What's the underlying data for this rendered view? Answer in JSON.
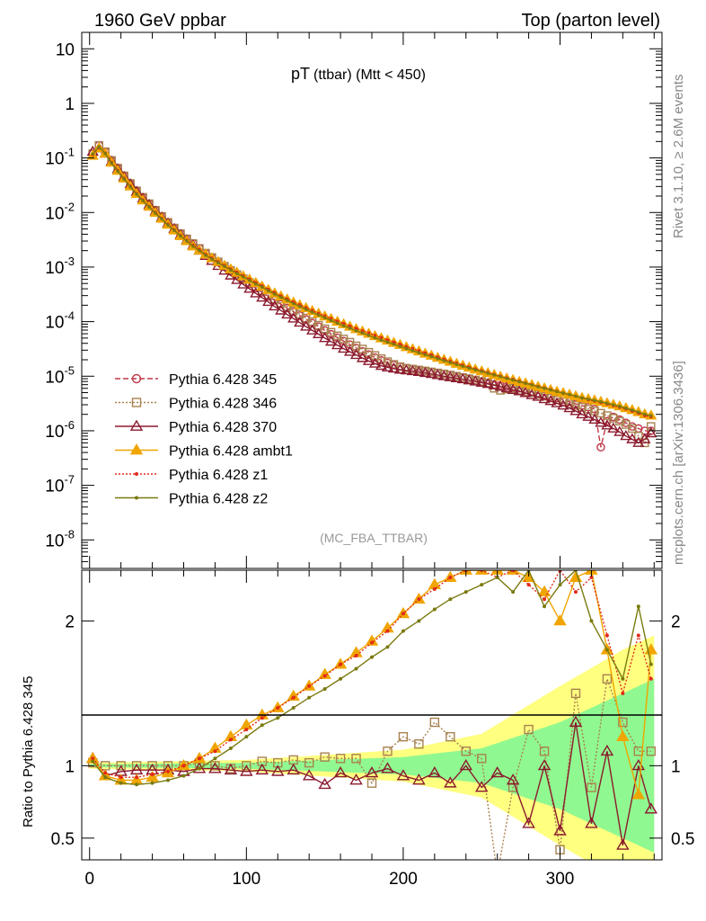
{
  "header": {
    "left": "1960 GeV ppbar",
    "right": "Top (parton level)"
  },
  "title": {
    "main": "pT",
    "sub": "(ttbar) (Mtt < 450)"
  },
  "side_labels": {
    "rivet": "Rivet 3.1.10, ≥ 2.6M events",
    "mcplots": "mcplots.cern.ch [arXiv:1306.3436]"
  },
  "analysis_tag": "(MC_FBA_TTBAR)",
  "ratio_ylabel": "Ratio to Pythia 6.428 345",
  "colors": {
    "345": "#c0394b",
    "346": "#a8824f",
    "370": "#8b1a2e",
    "ambt1": "#f0a500",
    "z1": "#e02a1a",
    "z2": "#7a7a10",
    "band_green": "#90f890",
    "band_yellow": "#ffff80"
  },
  "chart_data": [
    {
      "type": "line",
      "panel": "main",
      "yscale": "log",
      "ylim": [
        3e-09,
        20
      ],
      "xlim": [
        -5,
        365
      ],
      "yticks": [
        "10",
        "1",
        "10^-1",
        "10^-2",
        "10^-3",
        "10^-4",
        "10^-5",
        "10^-6",
        "10^-7",
        "10^-8"
      ],
      "legend_position": "lower-left",
      "x": [
        2,
        6,
        10,
        14,
        18,
        22,
        26,
        30,
        34,
        38,
        42,
        46,
        50,
        54,
        58,
        62,
        66,
        70,
        74,
        78,
        82,
        86,
        90,
        94,
        98,
        102,
        106,
        110,
        114,
        118,
        122,
        126,
        130,
        134,
        138,
        142,
        146,
        150,
        154,
        158,
        162,
        166,
        170,
        174,
        178,
        182,
        186,
        190,
        194,
        198,
        202,
        206,
        210,
        214,
        218,
        222,
        226,
        230,
        234,
        238,
        242,
        246,
        250,
        254,
        258,
        262,
        266,
        270,
        274,
        278,
        282,
        286,
        290,
        294,
        298,
        302,
        306,
        310,
        314,
        318,
        322,
        326,
        330,
        334,
        338,
        342,
        346,
        350,
        354,
        358
      ],
      "series": [
        {
          "name": "Pythia 6.428 345",
          "values": [
            0.12,
            0.17,
            0.13,
            0.09,
            0.065,
            0.047,
            0.034,
            0.025,
            0.019,
            0.0145,
            0.011,
            0.0085,
            0.0066,
            0.0052,
            0.0041,
            0.0033,
            0.0027,
            0.0022,
            0.0018,
            0.00148,
            0.00122,
            0.00101,
            0.00084,
            0.0007,
            0.00058,
            0.00049,
            0.00041,
            0.000345,
            0.00029,
            0.000245,
            0.000208,
            0.000177,
            0.000151,
            0.000129,
            0.00011,
            9.4e-05,
            8.1e-05,
            6.9e-05,
            5.9e-05,
            5.1e-05,
            4.4e-05,
            3.8e-05,
            3.3e-05,
            2.85e-05,
            2.5e-05,
            2.2e-05,
            1.95e-05,
            1.75e-05,
            1.6e-05,
            1.5e-05,
            1.4e-05,
            1.35e-05,
            1.3e-05,
            1.25e-05,
            1.2e-05,
            1.15e-05,
            1.1e-05,
            1.05e-05,
            1e-05,
            9.5e-06,
            9e-06,
            8.5e-06,
            8e-06,
            7.5e-06,
            7e-06,
            6.8e-06,
            6.5e-06,
            6.2e-06,
            6e-06,
            5.6e-06,
            5.2e-06,
            4.9e-06,
            4.6e-06,
            4.3e-06,
            4e-06,
            3.7e-06,
            3.4e-06,
            3.1e-06,
            2.9e-06,
            2.7e-06,
            2.5e-06,
            5e-07,
            1.5e-06,
            1.8e-06,
            1.6e-06,
            1.4e-06,
            1.2e-06,
            1.1e-06,
            1e-06,
            1e-06
          ]
        },
        {
          "name": "Pythia 6.428 346",
          "values": [
            0.12,
            0.17,
            0.13,
            0.09,
            0.065,
            0.047,
            0.034,
            0.025,
            0.019,
            0.0145,
            0.011,
            0.0085,
            0.0066,
            0.0052,
            0.0041,
            0.0033,
            0.0027,
            0.0022,
            0.0018,
            0.0015,
            0.00125,
            0.00104,
            0.00087,
            0.00073,
            0.00061,
            0.00052,
            0.00044,
            0.00037,
            0.00031,
            0.00026,
            0.00022,
            0.00019,
            0.00016,
            0.000137,
            0.000117,
            0.0001,
            8.6e-05,
            7.4e-05,
            6.4e-05,
            5.5e-05,
            4.8e-05,
            4.2e-05,
            3.6e-05,
            3.15e-05,
            2.75e-05,
            2.4e-05,
            2.1e-05,
            1.85e-05,
            1.65e-05,
            1.5e-05,
            1.4e-05,
            1.35e-05,
            1.3e-05,
            1.25e-05,
            1.2e-05,
            1.15e-05,
            1.1e-05,
            1.05e-05,
            1e-05,
            9.5e-06,
            9e-06,
            8.5e-06,
            8e-06,
            7.5e-06,
            6e-06,
            5.5e-06,
            5.8e-06,
            6e-06,
            5.5e-06,
            5.2e-06,
            5e-06,
            4.6e-06,
            4.3e-06,
            4e-06,
            3.7e-06,
            3.4e-06,
            3.1e-06,
            2.9e-06,
            2.7e-06,
            2.5e-06,
            2.3e-06,
            2.1e-06,
            1.9e-06,
            1.7e-06,
            1.5e-06,
            1.3e-06,
            1.1e-06,
            8e-07,
            6e-07,
            1.2e-06
          ]
        },
        {
          "name": "Pythia 6.428 370",
          "values": [
            0.13,
            0.15,
            0.12,
            0.086,
            0.062,
            0.045,
            0.033,
            0.024,
            0.018,
            0.0138,
            0.0105,
            0.0081,
            0.0063,
            0.005,
            0.0039,
            0.0031,
            0.0025,
            0.002,
            0.0016,
            0.0013,
            0.00105,
            0.00086,
            0.0007,
            0.00058,
            0.00048,
            0.0004,
            0.00033,
            0.000275,
            0.00023,
            0.00019,
            0.00016,
            0.000135,
            0.000114,
            9.6e-05,
            8.1e-05,
            6.9e-05,
            5.9e-05,
            5e-05,
            4.3e-05,
            3.7e-05,
            3.2e-05,
            2.8e-05,
            2.45e-05,
            2.15e-05,
            1.9e-05,
            1.7e-05,
            1.55e-05,
            1.45e-05,
            1.38e-05,
            1.32e-05,
            1.28e-05,
            1.24e-05,
            1.2e-05,
            1.15e-05,
            1.1e-05,
            1.05e-05,
            1e-05,
            9.6e-06,
            9.2e-06,
            8.8e-06,
            8.4e-06,
            8e-06,
            7.6e-06,
            7.2e-06,
            6.8e-06,
            6.4e-06,
            6e-06,
            5.6e-06,
            5.3e-06,
            4.9e-06,
            4.5e-06,
            4.2e-06,
            3.8e-06,
            3.5e-06,
            3.2e-06,
            2.9e-06,
            2.6e-06,
            2.3e-06,
            2e-06,
            1.8e-06,
            1.6e-06,
            1.4e-06,
            1.25e-06,
            1.1e-06,
            9.5e-07,
            8e-07,
            7e-07,
            6e-07,
            7e-07,
            9e-07
          ]
        },
        {
          "name": "Pythia 6.428 ambt1",
          "values": [
            0.11,
            0.15,
            0.12,
            0.082,
            0.058,
            0.042,
            0.03,
            0.022,
            0.0167,
            0.0128,
            0.0099,
            0.0077,
            0.006,
            0.0047,
            0.0037,
            0.003,
            0.0024,
            0.002,
            0.0017,
            0.00145,
            0.00124,
            0.00106,
            0.00091,
            0.00079,
            0.00068,
            0.00059,
            0.00051,
            0.00044,
            0.00038,
            0.00033,
            0.00029,
            0.000255,
            0.000225,
            0.0002,
            0.000177,
            0.000157,
            0.00014,
            0.000125,
            0.000112,
            0.0001,
            9e-05,
            8.1e-05,
            7.3e-05,
            6.6e-05,
            6e-05,
            5.45e-05,
            4.95e-05,
            4.5e-05,
            4.1e-05,
            3.75e-05,
            3.42e-05,
            3.12e-05,
            2.85e-05,
            2.6e-05,
            2.38e-05,
            2.18e-05,
            2e-05,
            1.84e-05,
            1.69e-05,
            1.56e-05,
            1.44e-05,
            1.33e-05,
            1.23e-05,
            1.14e-05,
            1.06e-05,
            9.8e-06,
            9.1e-06,
            8.5e-06,
            7.9e-06,
            7.4e-06,
            6.9e-06,
            6.4e-06,
            6e-06,
            5.6e-06,
            5.2e-06,
            4.9e-06,
            4.6e-06,
            4.3e-06,
            4e-06,
            3.8e-06,
            3.6e-06,
            3.4e-06,
            3.2e-06,
            3e-06,
            2.8e-06,
            2.6e-06,
            2.4e-06,
            2.2e-06,
            2e-06,
            1.9e-06
          ]
        },
        {
          "name": "Pythia 6.428 z1",
          "values": [
            0.115,
            0.155,
            0.122,
            0.083,
            0.059,
            0.0425,
            0.0305,
            0.0223,
            0.0169,
            0.0129,
            0.01,
            0.0078,
            0.0061,
            0.0048,
            0.0038,
            0.0031,
            0.0025,
            0.0021,
            0.0017,
            0.00146,
            0.00125,
            0.00107,
            0.00092,
            0.0008,
            0.00069,
            0.0006,
            0.00052,
            0.00045,
            0.00039,
            0.00034,
            0.000295,
            0.00026,
            0.00023,
            0.000204,
            0.00018,
            0.00016,
            0.000142,
            0.000127,
            0.000114,
            0.000102,
            9.2e-05,
            8.3e-05,
            7.5e-05,
            6.8e-05,
            6.2e-05,
            5.6e-05,
            5.1e-05,
            4.6e-05,
            4.2e-05,
            3.85e-05,
            3.5e-05,
            3.2e-05,
            2.92e-05,
            2.67e-05,
            2.45e-05,
            2.24e-05,
            2.05e-05,
            1.88e-05,
            1.73e-05,
            1.59e-05,
            1.47e-05,
            1.36e-05,
            1.26e-05,
            1.17e-05,
            1.08e-05,
            1e-05,
            9.3e-06,
            8.7e-06,
            8.1e-06,
            7.5e-06,
            7e-06,
            6.5e-06,
            6.1e-06,
            5.7e-06,
            5.3e-06,
            4.9e-06,
            4.6e-06,
            4.3e-06,
            4e-06,
            3.7e-06,
            3.5e-06,
            3.3e-06,
            3.1e-06,
            2.9e-06,
            2.7e-06,
            2.5e-06,
            2.3e-06,
            2.1e-06,
            1.9e-06,
            1.8e-06
          ]
        },
        {
          "name": "Pythia 6.428 z2",
          "values": [
            0.118,
            0.16,
            0.12,
            0.08,
            0.057,
            0.041,
            0.0295,
            0.0216,
            0.0164,
            0.0126,
            0.0097,
            0.0076,
            0.0059,
            0.0047,
            0.0037,
            0.003,
            0.0024,
            0.002,
            0.00165,
            0.0014,
            0.0012,
            0.00103,
            0.00088,
            0.00076,
            0.00066,
            0.00057,
            0.00049,
            0.00043,
            0.00037,
            0.00032,
            0.00028,
            0.000245,
            0.000215,
            0.00019,
            0.000168,
            0.000149,
            0.000132,
            0.000118,
            0.000105,
            9.4e-05,
            8.4e-05,
            7.6e-05,
            6.8e-05,
            6.2e-05,
            5.6e-05,
            5.05e-05,
            4.6e-05,
            4.2e-05,
            3.85e-05,
            3.52e-05,
            3.22e-05,
            2.95e-05,
            2.7e-05,
            2.48e-05,
            2.28e-05,
            2.1e-05,
            1.93e-05,
            1.78e-05,
            1.64e-05,
            1.52e-05,
            1.41e-05,
            1.31e-05,
            1.22e-05,
            1.13e-05,
            1.05e-05,
            9.8e-06,
            9.1e-06,
            8.5e-06,
            7.9e-06,
            7.4e-06,
            6.9e-06,
            6.4e-06,
            6e-06,
            5.6e-06,
            5.2e-06,
            4.9e-06,
            4.6e-06,
            4.3e-06,
            4e-06,
            3.8e-06,
            3.6e-06,
            3.4e-06,
            3.2e-06,
            3e-06,
            2.8e-06,
            2.6e-06,
            2.4e-06,
            2.2e-06,
            2e-06,
            1.9e-06
          ]
        }
      ]
    },
    {
      "type": "line",
      "panel": "ratio",
      "ylim": [
        0.35,
        2.35
      ],
      "yticks": [
        "0.5",
        "1",
        "2"
      ],
      "xticks": [
        "0",
        "100",
        "200",
        "300"
      ],
      "xlim": [
        -5,
        365
      ],
      "reference_line": 1,
      "bands": [
        {
          "name": "stat",
          "x": [
            0,
            100,
            200,
            250,
            300,
            340,
            360
          ],
          "half_width": [
            0.01,
            0.02,
            0.06,
            0.12,
            0.3,
            0.5,
            0.6
          ]
        },
        {
          "name": "total",
          "x": [
            0,
            100,
            200,
            250,
            300,
            340,
            360
          ],
          "half_width": [
            0.02,
            0.04,
            0.11,
            0.22,
            0.55,
            0.8,
            0.9
          ]
        }
      ],
      "x": [
        2,
        10,
        20,
        30,
        40,
        50,
        60,
        70,
        80,
        90,
        100,
        110,
        120,
        130,
        140,
        150,
        160,
        170,
        180,
        190,
        200,
        210,
        220,
        230,
        240,
        250,
        260,
        270,
        280,
        290,
        300,
        310,
        320,
        330,
        340,
        350,
        358
      ],
      "series": [
        {
          "name": "Pythia 6.428 346",
          "values": [
            1.02,
            1.0,
            1.0,
            1.0,
            1.0,
            1.0,
            1.0,
            1.02,
            1.0,
            0.98,
            1.0,
            1.03,
            1.02,
            1.04,
            1.02,
            1.06,
            1.05,
            1.05,
            0.88,
            1.1,
            1.2,
            1.15,
            1.3,
            1.2,
            1.1,
            1.05,
            0.25,
            0.85,
            1.25,
            1.1,
            0.42,
            1.5,
            0.85,
            1.6,
            1.3,
            1.1,
            1.1
          ]
        },
        {
          "name": "Pythia 6.428 370",
          "values": [
            1.05,
            0.93,
            0.96,
            0.97,
            0.97,
            0.97,
            0.96,
            0.98,
            0.98,
            0.97,
            0.96,
            0.97,
            0.96,
            0.97,
            0.93,
            0.87,
            0.95,
            0.9,
            0.95,
            0.98,
            0.93,
            0.9,
            0.95,
            0.88,
            1.0,
            0.85,
            0.95,
            0.9,
            0.6,
            1.0,
            0.55,
            1.3,
            0.6,
            1.1,
            0.45,
            1.0,
            0.7
          ]
        },
        {
          "name": "Pythia 6.428 ambt1",
          "values": [
            1.05,
            0.93,
            0.9,
            0.9,
            0.92,
            0.95,
            1.0,
            1.05,
            1.12,
            1.2,
            1.28,
            1.35,
            1.4,
            1.48,
            1.55,
            1.63,
            1.7,
            1.78,
            1.86,
            1.95,
            2.05,
            2.15,
            2.25,
            2.3,
            2.35,
            2.35,
            2.35,
            2.35,
            2.3,
            2.2,
            2.0,
            2.3,
            2.35,
            1.8,
            1.2,
            0.8,
            1.8
          ]
        },
        {
          "name": "Pythia 6.428 z1",
          "values": [
            1.05,
            0.95,
            0.92,
            0.92,
            0.94,
            0.96,
            1.0,
            1.05,
            1.1,
            1.18,
            1.25,
            1.33,
            1.4,
            1.47,
            1.55,
            1.62,
            1.7,
            1.76,
            1.85,
            1.93,
            2.05,
            2.15,
            2.22,
            2.3,
            2.35,
            2.35,
            2.3,
            2.35,
            2.25,
            2.15,
            2.35,
            2.2,
            2.3,
            1.9,
            1.5,
            1.9,
            1.6
          ]
        },
        {
          "name": "Pythia 6.428 z2",
          "values": [
            1.03,
            0.92,
            0.88,
            0.87,
            0.88,
            0.9,
            0.93,
            0.98,
            1.05,
            1.12,
            1.2,
            1.28,
            1.33,
            1.4,
            1.47,
            1.53,
            1.6,
            1.67,
            1.75,
            1.82,
            1.93,
            2.0,
            2.08,
            2.15,
            2.2,
            2.25,
            2.3,
            2.2,
            2.35,
            2.1,
            2.25,
            2.35,
            2.0,
            1.8,
            1.6,
            2.1,
            1.7
          ]
        }
      ]
    }
  ]
}
